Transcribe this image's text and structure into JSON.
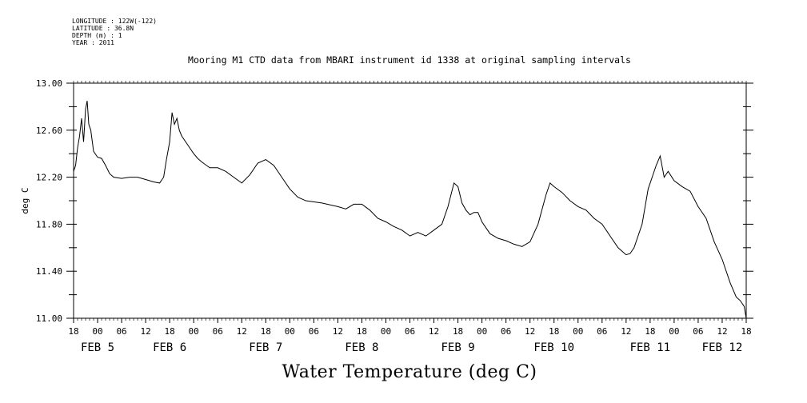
{
  "metadata": {
    "longitude": "LONGITUDE : 122W(-122)",
    "latitude": "LATITUDE : 36.8N",
    "depth": "DEPTH (m) : 1",
    "year": "YEAR : 2011"
  },
  "chart_data": {
    "type": "line",
    "title": "Mooring M1 CTD data from MBARI instrument id 1338 at original sampling intervals",
    "xlabel": "Water Temperature (deg C)",
    "ylabel": "deg C",
    "ylim": [
      11.0,
      13.0
    ],
    "y_ticks": [
      "11.00",
      "11.40",
      "11.80",
      "12.20",
      "12.60",
      "13.00"
    ],
    "x_range_hours": [
      0,
      168
    ],
    "x_tick_labels": [
      "18",
      "00",
      "06",
      "12",
      "18",
      "00",
      "06",
      "12",
      "18",
      "00",
      "06",
      "12",
      "18",
      "00",
      "06",
      "12",
      "18",
      "00",
      "06",
      "12",
      "18",
      "00",
      "06",
      "12",
      "18",
      "00",
      "06",
      "12",
      "18"
    ],
    "x_day_labels": [
      {
        "text": "FEB  5",
        "hour": 6
      },
      {
        "text": "FEB  6",
        "hour": 24
      },
      {
        "text": "FEB  7",
        "hour": 48
      },
      {
        "text": "FEB  8",
        "hour": 72
      },
      {
        "text": "FEB  9",
        "hour": 96
      },
      {
        "text": "FEB 10",
        "hour": 120
      },
      {
        "text": "FEB 11",
        "hour": 144
      },
      {
        "text": "FEB 12",
        "hour": 162
      }
    ],
    "series": [
      {
        "color": "#000000",
        "points": [
          [
            0,
            12.25
          ],
          [
            0.5,
            12.3
          ],
          [
            1,
            12.45
          ],
          [
            1.5,
            12.55
          ],
          [
            2,
            12.7
          ],
          [
            2.5,
            12.5
          ],
          [
            3,
            12.78
          ],
          [
            3.4,
            12.85
          ],
          [
            3.8,
            12.65
          ],
          [
            4.3,
            12.6
          ],
          [
            5,
            12.42
          ],
          [
            6,
            12.37
          ],
          [
            7,
            12.36
          ],
          [
            8,
            12.3
          ],
          [
            9,
            12.23
          ],
          [
            10,
            12.2
          ],
          [
            12,
            12.19
          ],
          [
            14,
            12.2
          ],
          [
            16,
            12.2
          ],
          [
            18,
            12.18
          ],
          [
            20,
            12.16
          ],
          [
            21.5,
            12.15
          ],
          [
            22.5,
            12.2
          ],
          [
            23.2,
            12.35
          ],
          [
            24,
            12.5
          ],
          [
            24.6,
            12.75
          ],
          [
            25.2,
            12.65
          ],
          [
            25.8,
            12.7
          ],
          [
            26.4,
            12.6
          ],
          [
            27,
            12.55
          ],
          [
            28,
            12.5
          ],
          [
            29,
            12.45
          ],
          [
            30,
            12.4
          ],
          [
            31,
            12.36
          ],
          [
            32,
            12.33
          ],
          [
            34,
            12.28
          ],
          [
            36,
            12.28
          ],
          [
            38,
            12.25
          ],
          [
            40,
            12.2
          ],
          [
            42,
            12.15
          ],
          [
            44,
            12.22
          ],
          [
            46,
            12.32
          ],
          [
            48,
            12.35
          ],
          [
            50,
            12.3
          ],
          [
            52,
            12.2
          ],
          [
            54,
            12.1
          ],
          [
            56,
            12.03
          ],
          [
            58,
            12.0
          ],
          [
            62,
            11.98
          ],
          [
            66,
            11.95
          ],
          [
            68,
            11.93
          ],
          [
            70,
            11.97
          ],
          [
            72,
            11.97
          ],
          [
            74,
            11.92
          ],
          [
            76,
            11.85
          ],
          [
            78,
            11.82
          ],
          [
            80,
            11.78
          ],
          [
            82,
            11.75
          ],
          [
            84,
            11.7
          ],
          [
            86,
            11.73
          ],
          [
            88,
            11.7
          ],
          [
            90,
            11.75
          ],
          [
            92,
            11.8
          ],
          [
            93.5,
            11.95
          ],
          [
            95,
            12.15
          ],
          [
            96,
            12.12
          ],
          [
            97,
            11.98
          ],
          [
            98,
            11.92
          ],
          [
            99,
            11.88
          ],
          [
            100,
            11.9
          ],
          [
            101,
            11.9
          ],
          [
            102,
            11.82
          ],
          [
            104,
            11.72
          ],
          [
            106,
            11.68
          ],
          [
            108,
            11.66
          ],
          [
            110,
            11.63
          ],
          [
            112,
            11.61
          ],
          [
            114,
            11.65
          ],
          [
            116,
            11.8
          ],
          [
            118,
            12.05
          ],
          [
            119,
            12.15
          ],
          [
            120,
            12.12
          ],
          [
            122,
            12.07
          ],
          [
            124,
            12.0
          ],
          [
            126,
            11.95
          ],
          [
            128,
            11.92
          ],
          [
            130,
            11.85
          ],
          [
            132,
            11.8
          ],
          [
            134,
            11.7
          ],
          [
            136,
            11.6
          ],
          [
            138,
            11.54
          ],
          [
            139,
            11.55
          ],
          [
            140,
            11.6
          ],
          [
            142,
            11.8
          ],
          [
            143.5,
            12.1
          ],
          [
            144.5,
            12.2
          ],
          [
            145.5,
            12.3
          ],
          [
            146.5,
            12.38
          ],
          [
            147.5,
            12.2
          ],
          [
            148.5,
            12.25
          ],
          [
            150,
            12.17
          ],
          [
            152,
            12.12
          ],
          [
            154,
            12.08
          ],
          [
            156,
            11.95
          ],
          [
            158,
            11.85
          ],
          [
            160,
            11.65
          ],
          [
            162,
            11.5
          ],
          [
            164,
            11.3
          ],
          [
            165.5,
            11.18
          ],
          [
            166.5,
            11.15
          ],
          [
            167.5,
            11.1
          ],
          [
            168,
            11.0
          ]
        ]
      }
    ]
  }
}
